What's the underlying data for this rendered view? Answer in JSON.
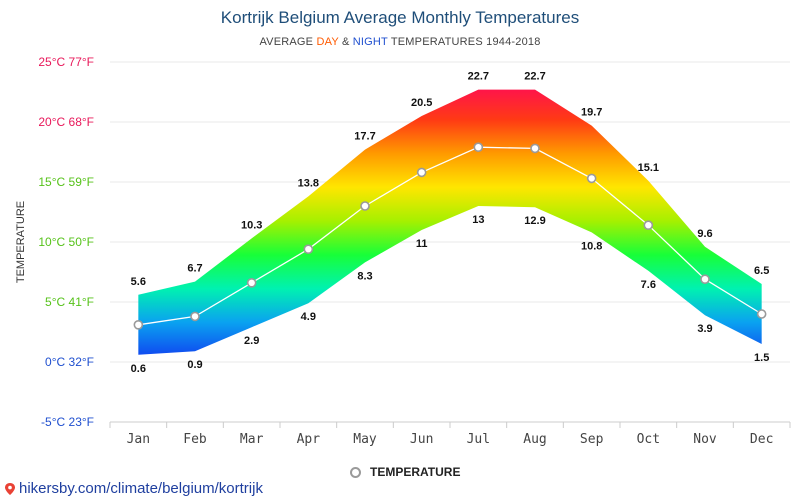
{
  "header": {
    "title": "Kortrijk Belgium Average Monthly Temperatures",
    "subtitle_prefix": "AVERAGE ",
    "subtitle_day": "DAY",
    "subtitle_amp": " & ",
    "subtitle_night": "NIGHT",
    "subtitle_suffix": " TEMPERATURES 1944-2018"
  },
  "legend": {
    "label": "TEMPERATURE"
  },
  "footer": {
    "link": "hikersby.com/climate/belgium/kortrijk",
    "icon": "map-pin-icon"
  },
  "chart_data": {
    "type": "area",
    "title": "Kortrijk Belgium Average Monthly Temperatures",
    "ylabel": "TEMPERATURE",
    "ylim": [
      -5,
      25
    ],
    "grid": true,
    "legend_position": "bottom-center",
    "categories": [
      "Jan",
      "Feb",
      "Mar",
      "Apr",
      "May",
      "Jun",
      "Jul",
      "Aug",
      "Sep",
      "Oct",
      "Nov",
      "Dec"
    ],
    "y_ticks": [
      {
        "value": 25,
        "label": "25°C 77°F",
        "color": "#e8185a"
      },
      {
        "value": 20,
        "label": "20°C 68°F",
        "color": "#e8185a"
      },
      {
        "value": 15,
        "label": "15°C 59°F",
        "color": "#56c21a"
      },
      {
        "value": 10,
        "label": "10°C 50°F",
        "color": "#56c21a"
      },
      {
        "value": 5,
        "label": "5°C 41°F",
        "color": "#56c21a"
      },
      {
        "value": 0,
        "label": "0°C 32°F",
        "color": "#1f4fcf"
      },
      {
        "value": -5,
        "label": "-5°C 23°F",
        "color": "#1f4fcf"
      }
    ],
    "series": [
      {
        "name": "DAY",
        "values": [
          5.6,
          6.7,
          10.3,
          13.8,
          17.7,
          20.5,
          22.7,
          22.7,
          19.7,
          15.1,
          9.6,
          6.5
        ]
      },
      {
        "name": "NIGHT",
        "values": [
          0.6,
          0.9,
          2.9,
          4.9,
          8.3,
          11,
          13,
          12.9,
          10.8,
          7.6,
          3.9,
          1.5
        ]
      },
      {
        "name": "TEMPERATURE",
        "values": [
          3.1,
          3.8,
          6.6,
          9.4,
          13,
          15.8,
          17.9,
          17.8,
          15.3,
          11.4,
          6.9,
          4.0
        ]
      }
    ],
    "colors": {
      "band_stops": [
        "#ff1050",
        "#ff3a14",
        "#ff9a00",
        "#ffe600",
        "#a6f000",
        "#18ff38",
        "#00f2b0",
        "#0aa2f0",
        "#1048f0"
      ],
      "mean_line": "#ffffff",
      "grid": "#e8e8e8",
      "label_text": "#111111",
      "axis_text": "#444444"
    }
  }
}
